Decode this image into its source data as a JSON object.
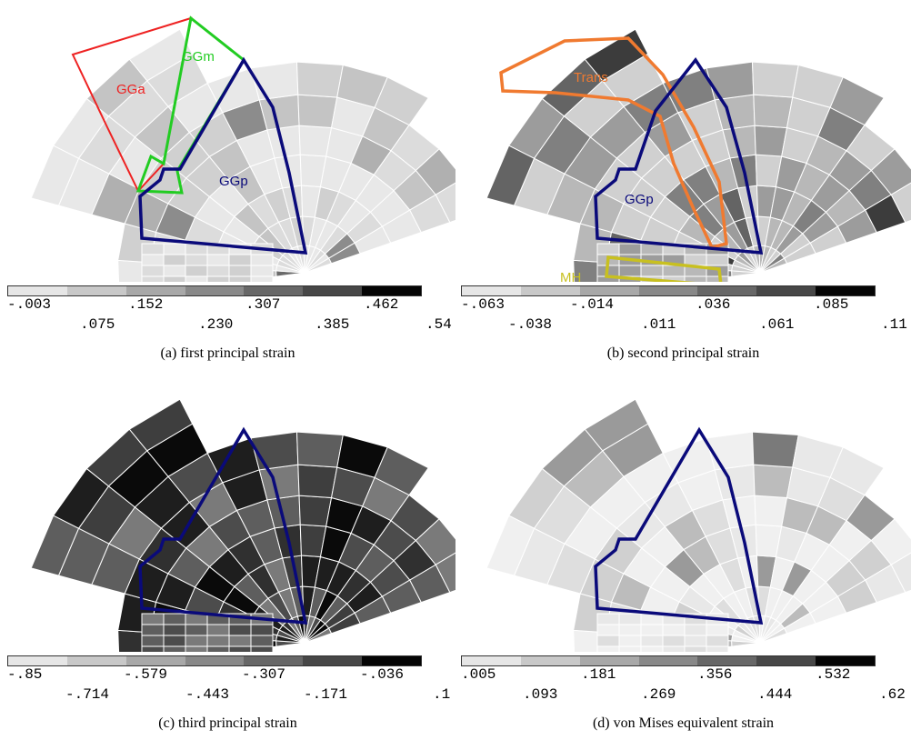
{
  "palette": [
    "#e6e6e6",
    "#c8c8c8",
    "#a8a8a8",
    "#888888",
    "#676767",
    "#474747",
    "#050505"
  ],
  "panels": [
    {
      "caption": "(a) first principal strain",
      "ticks_top": [
        "-.003",
        ".152",
        ".307",
        ".462"
      ],
      "ticks_bottom": [
        ".075",
        ".230",
        ".385",
        ".54"
      ],
      "regions": [
        {
          "label": "GGa",
          "color": "#ee2222"
        },
        {
          "label": "GGm",
          "color": "#22cc22"
        },
        {
          "label": "GGp",
          "color": "#0a0a7a"
        }
      ]
    },
    {
      "caption": "(b) second principal strain",
      "ticks_top": [
        "-.063",
        "-.014",
        ".036",
        ".085"
      ],
      "ticks_bottom": [
        "-.038",
        ".011",
        ".061",
        ".11"
      ],
      "regions": [
        {
          "label": "Trans",
          "color": "#f07a30"
        },
        {
          "label": "GGp",
          "color": "#0a0a7a"
        },
        {
          "label": "MH",
          "color": "#c8c020"
        }
      ]
    },
    {
      "caption": "(c) third principal strain",
      "ticks_top": [
        "-.85",
        "-.579",
        "-.307",
        "-.036"
      ],
      "ticks_bottom": [
        "-.714",
        "-.443",
        "-.171",
        ".1"
      ],
      "regions": [
        {
          "label": "",
          "color": "#0a0a7a"
        }
      ]
    },
    {
      "caption": "(d) von Mises equivalent strain",
      "ticks_top": [
        ".005",
        ".181",
        ".356",
        ".532"
      ],
      "ticks_bottom": [
        ".093",
        ".269",
        ".444",
        ".62"
      ],
      "regions": [
        {
          "label": "",
          "color": "#0a0a7a"
        }
      ]
    }
  ]
}
